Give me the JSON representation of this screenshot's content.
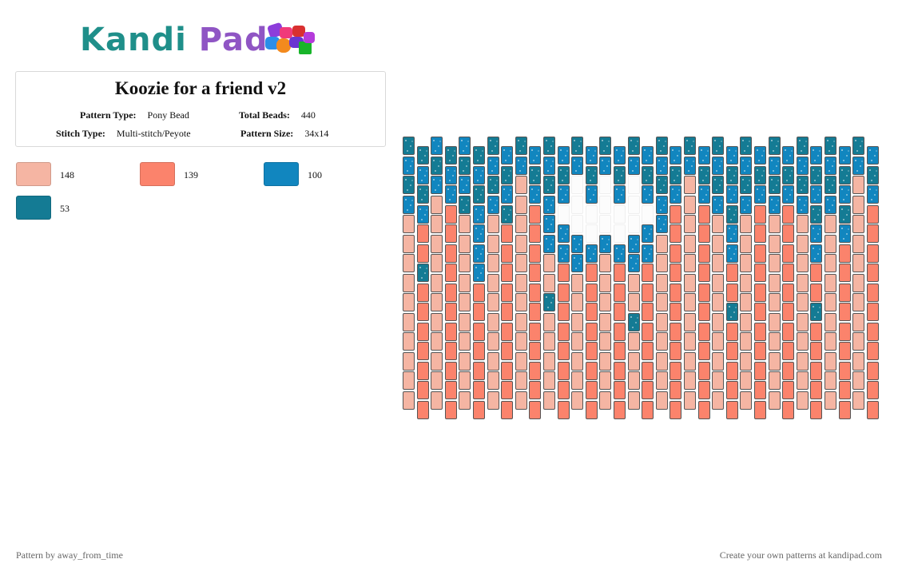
{
  "logo": {
    "text_part1": "Kandi",
    "text_part2": "Pad"
  },
  "pattern": {
    "title": "Koozie for a friend v2",
    "type_label": "Pattern Type:",
    "type_value": "Pony Bead",
    "total_label": "Total Beads:",
    "total_value": "440",
    "stitch_label": "Stitch Type:",
    "stitch_value": "Multi-stitch/Peyote",
    "size_label": "Pattern Size:",
    "size_value": "34x14"
  },
  "legend": [
    {
      "color": "#f5b5a3",
      "count": "148"
    },
    {
      "color": "#fb836c",
      "count": "139"
    },
    {
      "color": "#1186bf",
      "count": "100"
    },
    {
      "color": "#147b94",
      "count": "53"
    }
  ],
  "grid": {
    "columns": 34,
    "rows": 14,
    "palette": {
      "L": "#f5b5a3",
      "S": "#fb836c",
      "B": "#1186bf",
      "T": "#147b94",
      "E": "#fcfcfc"
    },
    "column_patterns": [
      "TBTBLLLLLLLLLL",
      "TBTBSSTSSSSSSS",
      "BTBLLLLLLLLLLL",
      "TBBSSSSSSSSSSS",
      "BTBTLLLLLLLLLL",
      "TBTBBBBSSSSSSS",
      "TBTBLLLLLLLLLL",
      "BTBTSSSSSSSSSS",
      "TBLLLLLLLLLLLL",
      "BTBSSSSSSSSSSS",
      "TBTBBBLLTLLLLL",
      "BTBEBBSSSSSSSS",
      "TBEEEBBLLLLLLL",
      "BTBEEBSSSSSSSS",
      "TBEEEBLLLLLLLL",
      "BTBEEBSSSSSSSS",
      "TBEEEBBLLTLLLL",
      "BTBEBBSSSSSSSS",
      "TBTBBLLLLLLLLL",
      "BTBSSSSSSSSSSS",
      "TBLLLLLLLLLLLL",
      "BTBSSSSSSSSSSS",
      "TBTBLLLLLLLLLL",
      "BTBTBBSSTSSSSS",
      "TBTBLLLLLLLLLL",
      "BTBSSSSSSSSSSS",
      "TBTBLLLLLLLLLL",
      "BTBSSSSSSSSSSS",
      "TBTBLLLLLLLLLL",
      "BTBTBBSSTSSSSS",
      "TBTBLLLLLLLLLL",
      "BTBTBSSSSSSSSS",
      "TBLLLLLLLLLLLL",
      "BTBSSSSSSSSSSS"
    ]
  },
  "footer": {
    "left": "Pattern by away_from_time",
    "right": "Create your own patterns at kandipad.com"
  }
}
